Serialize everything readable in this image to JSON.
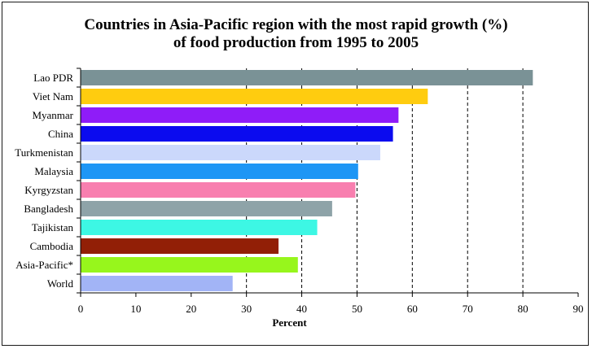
{
  "chart_data": {
    "type": "bar",
    "orientation": "horizontal",
    "title": "Countries in Asia-Pacific region with the most rapid growth (%) of food production from 1995 to 2005",
    "title_lines": [
      "Countries in Asia-Pacific region with the most rapid growth (%)",
      "of food production from 1995 to 2005"
    ],
    "xlabel": "Percent",
    "ylabel": "",
    "xlim": [
      0,
      90
    ],
    "xticks": [
      0,
      10,
      20,
      30,
      40,
      50,
      60,
      70,
      80,
      90
    ],
    "grid": "vertical dashed at 30, 40, 50, 60, 70, 80",
    "categories": [
      "Lao PDR",
      "Viet Nam",
      "Myanmar",
      "China",
      "Turkmenistan",
      "Malaysia",
      "Kyrgyzstan",
      "Bangladesh",
      "Tajikistan",
      "Cambodia",
      "Asia-Pacific*",
      "World"
    ],
    "values": [
      81.8,
      62.8,
      57.5,
      56.5,
      54.2,
      50.2,
      49.7,
      45.5,
      42.8,
      35.8,
      39.3,
      27.5
    ],
    "colors": [
      "#7a9296",
      "#ffcc0f",
      "#8f1cf8",
      "#0b0bef",
      "#cbd8fb",
      "#1e96f5",
      "#f87faf",
      "#8ea3a8",
      "#3df7e4",
      "#921f06",
      "#97f61c",
      "#a2b4f6"
    ]
  }
}
